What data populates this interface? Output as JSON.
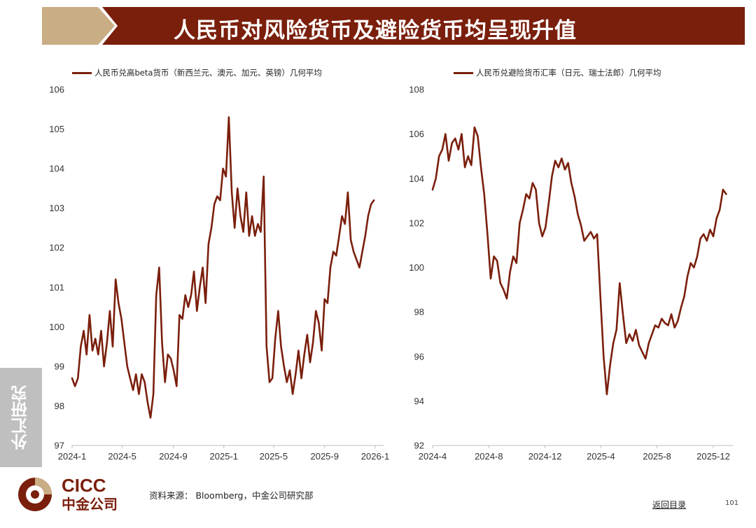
{
  "title": "人民币对风险货币及避险货币均呈现升值",
  "side_tab": "外汇研究",
  "source": "资料来源： Bloomberg，中金公司研究部",
  "back_link": "返回目录",
  "page_number": "101",
  "logo": {
    "en": "CICC",
    "cn": "中金公司"
  },
  "colors": {
    "brand": "#7a1f0c",
    "gold": "#c9ad85",
    "line": "#7a1f0c",
    "tab": "#bfbfbf"
  },
  "chart_data": [
    {
      "type": "line",
      "legend": "人民币兑高beta货币（新西兰元、澳元、加元、英镑）几何平均",
      "ylim": [
        97,
        106
      ],
      "yticks": [
        "97",
        "98",
        "99",
        "100",
        "101",
        "102",
        "103",
        "104",
        "105",
        "106"
      ],
      "xticks": [
        "2024-1",
        "2024-5",
        "2024-9",
        "2025-1",
        "2025-5",
        "2025-9",
        "2026-1"
      ],
      "xtick_dates": [
        "2024-01-01",
        "2024-05-01",
        "2024-09-01",
        "2025-01-01",
        "2025-05-01",
        "2025-09-01",
        "2026-01-01"
      ],
      "series": [
        {
          "points": [
            [
              "2024-01-01",
              98.7
            ],
            [
              "2024-01-08",
              98.5
            ],
            [
              "2024-01-15",
              98.7
            ],
            [
              "2024-01-22",
              99.5
            ],
            [
              "2024-01-29",
              99.9
            ],
            [
              "2024-02-05",
              99.3
            ],
            [
              "2024-02-12",
              100.3
            ],
            [
              "2024-02-19",
              99.4
            ],
            [
              "2024-02-26",
              99.7
            ],
            [
              "2024-03-04",
              99.3
            ],
            [
              "2024-03-11",
              99.9
            ],
            [
              "2024-03-18",
              99.0
            ],
            [
              "2024-03-25",
              99.6
            ],
            [
              "2024-04-01",
              100.4
            ],
            [
              "2024-04-08",
              99.5
            ],
            [
              "2024-04-15",
              101.2
            ],
            [
              "2024-04-22",
              100.6
            ],
            [
              "2024-04-29",
              100.2
            ],
            [
              "2024-05-06",
              99.6
            ],
            [
              "2024-05-13",
              99.0
            ],
            [
              "2024-05-20",
              98.7
            ],
            [
              "2024-05-27",
              98.4
            ],
            [
              "2024-06-03",
              98.8
            ],
            [
              "2024-06-10",
              98.3
            ],
            [
              "2024-06-17",
              98.8
            ],
            [
              "2024-06-24",
              98.6
            ],
            [
              "2024-07-01",
              98.1
            ],
            [
              "2024-07-08",
              97.7
            ],
            [
              "2024-07-15",
              98.3
            ],
            [
              "2024-07-22",
              100.8
            ],
            [
              "2024-07-29",
              101.5
            ],
            [
              "2024-08-05",
              99.6
            ],
            [
              "2024-08-12",
              98.6
            ],
            [
              "2024-08-19",
              99.3
            ],
            [
              "2024-08-26",
              99.2
            ],
            [
              "2024-09-02",
              98.9
            ],
            [
              "2024-09-09",
              98.5
            ],
            [
              "2024-09-16",
              100.3
            ],
            [
              "2024-09-23",
              100.2
            ],
            [
              "2024-09-30",
              100.8
            ],
            [
              "2024-10-07",
              100.5
            ],
            [
              "2024-10-14",
              100.8
            ],
            [
              "2024-10-21",
              101.4
            ],
            [
              "2024-10-28",
              100.4
            ],
            [
              "2024-11-04",
              101.0
            ],
            [
              "2024-11-11",
              101.5
            ],
            [
              "2024-11-18",
              100.6
            ],
            [
              "2024-11-25",
              102.1
            ],
            [
              "2024-12-02",
              102.5
            ],
            [
              "2024-12-09",
              103.1
            ],
            [
              "2024-12-16",
              103.3
            ],
            [
              "2024-12-23",
              103.2
            ],
            [
              "2024-12-30",
              104.0
            ],
            [
              "2025-01-06",
              103.8
            ],
            [
              "2025-01-13",
              105.3
            ],
            [
              "2025-01-20",
              103.4
            ],
            [
              "2025-01-27",
              102.5
            ],
            [
              "2025-02-03",
              103.5
            ],
            [
              "2025-02-10",
              102.8
            ],
            [
              "2025-02-17",
              102.4
            ],
            [
              "2025-02-24",
              103.4
            ],
            [
              "2025-03-03",
              102.3
            ],
            [
              "2025-03-10",
              102.8
            ],
            [
              "2025-03-17",
              102.3
            ],
            [
              "2025-03-24",
              102.6
            ],
            [
              "2025-03-31",
              102.4
            ],
            [
              "2025-04-07",
              103.8
            ],
            [
              "2025-04-14",
              99.5
            ],
            [
              "2025-04-21",
              98.6
            ],
            [
              "2025-04-28",
              98.7
            ],
            [
              "2025-05-05",
              99.7
            ],
            [
              "2025-05-12",
              100.4
            ],
            [
              "2025-05-19",
              99.5
            ],
            [
              "2025-05-26",
              99.0
            ],
            [
              "2025-06-02",
              98.6
            ],
            [
              "2025-06-09",
              98.9
            ],
            [
              "2025-06-16",
              98.3
            ],
            [
              "2025-06-23",
              98.8
            ],
            [
              "2025-06-30",
              99.4
            ],
            [
              "2025-07-07",
              98.7
            ],
            [
              "2025-07-14",
              99.3
            ],
            [
              "2025-07-21",
              99.8
            ],
            [
              "2025-07-28",
              99.1
            ],
            [
              "2025-08-04",
              99.6
            ],
            [
              "2025-08-11",
              100.4
            ],
            [
              "2025-08-18",
              100.1
            ],
            [
              "2025-08-25",
              99.4
            ],
            [
              "2025-09-01",
              100.7
            ],
            [
              "2025-09-08",
              100.6
            ],
            [
              "2025-09-15",
              101.5
            ],
            [
              "2025-09-22",
              101.9
            ],
            [
              "2025-09-29",
              101.8
            ],
            [
              "2025-10-06",
              102.3
            ],
            [
              "2025-10-13",
              102.8
            ],
            [
              "2025-10-20",
              102.6
            ],
            [
              "2025-10-27",
              103.4
            ],
            [
              "2025-11-03",
              102.2
            ],
            [
              "2025-11-10",
              101.9
            ],
            [
              "2025-11-17",
              101.7
            ],
            [
              "2025-11-24",
              101.5
            ],
            [
              "2025-12-01",
              101.9
            ],
            [
              "2025-12-08",
              102.3
            ],
            [
              "2025-12-15",
              102.8
            ],
            [
              "2025-12-22",
              103.1
            ],
            [
              "2025-12-29",
              103.2
            ]
          ]
        }
      ]
    },
    {
      "type": "line",
      "legend": "人民币兑避险货币汇率（日元、瑞士法郎）几何平均",
      "ylim": [
        92,
        108
      ],
      "yticks": [
        "92",
        "94",
        "96",
        "98",
        "100",
        "102",
        "104",
        "106",
        "108"
      ],
      "xticks": [
        "2024-4",
        "2024-8",
        "2024-12",
        "2025-4",
        "2025-8",
        "2025-12"
      ],
      "xtick_dates": [
        "2024-04-01",
        "2024-08-01",
        "2024-12-01",
        "2025-04-01",
        "2025-08-01",
        "2025-12-01"
      ],
      "series": [
        {
          "points": [
            [
              "2024-04-01",
              103.5
            ],
            [
              "2024-04-08",
              104.0
            ],
            [
              "2024-04-15",
              105.0
            ],
            [
              "2024-04-22",
              105.3
            ],
            [
              "2024-04-29",
              106.0
            ],
            [
              "2024-05-06",
              104.8
            ],
            [
              "2024-05-13",
              105.6
            ],
            [
              "2024-05-20",
              105.8
            ],
            [
              "2024-05-27",
              105.3
            ],
            [
              "2024-06-03",
              106.0
            ],
            [
              "2024-06-10",
              104.5
            ],
            [
              "2024-06-17",
              105.0
            ],
            [
              "2024-06-24",
              104.6
            ],
            [
              "2024-07-01",
              106.3
            ],
            [
              "2024-07-08",
              105.9
            ],
            [
              "2024-07-15",
              104.5
            ],
            [
              "2024-07-22",
              103.3
            ],
            [
              "2024-07-29",
              101.5
            ],
            [
              "2024-08-05",
              99.5
            ],
            [
              "2024-08-12",
              100.5
            ],
            [
              "2024-08-19",
              100.3
            ],
            [
              "2024-08-26",
              99.3
            ],
            [
              "2024-09-02",
              99.0
            ],
            [
              "2024-09-09",
              98.6
            ],
            [
              "2024-09-16",
              99.8
            ],
            [
              "2024-09-23",
              100.5
            ],
            [
              "2024-09-30",
              100.2
            ],
            [
              "2024-10-07",
              102.0
            ],
            [
              "2024-10-14",
              102.6
            ],
            [
              "2024-10-21",
              103.3
            ],
            [
              "2024-10-28",
              103.1
            ],
            [
              "2024-11-04",
              103.8
            ],
            [
              "2024-11-11",
              103.5
            ],
            [
              "2024-11-18",
              102.0
            ],
            [
              "2024-11-25",
              101.4
            ],
            [
              "2024-12-02",
              101.8
            ],
            [
              "2024-12-09",
              102.9
            ],
            [
              "2024-12-16",
              104.1
            ],
            [
              "2024-12-23",
              104.8
            ],
            [
              "2024-12-30",
              104.5
            ],
            [
              "2025-01-06",
              104.9
            ],
            [
              "2025-01-13",
              104.4
            ],
            [
              "2025-01-20",
              104.7
            ],
            [
              "2025-01-27",
              103.8
            ],
            [
              "2025-02-03",
              103.2
            ],
            [
              "2025-02-10",
              102.4
            ],
            [
              "2025-02-17",
              101.9
            ],
            [
              "2025-02-24",
              101.2
            ],
            [
              "2025-03-03",
              101.4
            ],
            [
              "2025-03-10",
              101.6
            ],
            [
              "2025-03-17",
              101.3
            ],
            [
              "2025-03-24",
              101.5
            ],
            [
              "2025-03-31",
              98.7
            ],
            [
              "2025-04-07",
              96.0
            ],
            [
              "2025-04-14",
              94.3
            ],
            [
              "2025-04-21",
              95.6
            ],
            [
              "2025-04-28",
              96.6
            ],
            [
              "2025-05-05",
              97.2
            ],
            [
              "2025-05-12",
              99.3
            ],
            [
              "2025-05-19",
              97.9
            ],
            [
              "2025-05-26",
              96.6
            ],
            [
              "2025-06-02",
              97.0
            ],
            [
              "2025-06-09",
              96.7
            ],
            [
              "2025-06-16",
              97.2
            ],
            [
              "2025-06-23",
              96.5
            ],
            [
              "2025-06-30",
              96.2
            ],
            [
              "2025-07-07",
              95.9
            ],
            [
              "2025-07-14",
              96.6
            ],
            [
              "2025-07-21",
              97.0
            ],
            [
              "2025-07-28",
              97.4
            ],
            [
              "2025-08-04",
              97.3
            ],
            [
              "2025-08-11",
              97.7
            ],
            [
              "2025-08-18",
              97.5
            ],
            [
              "2025-08-25",
              97.4
            ],
            [
              "2025-09-01",
              97.9
            ],
            [
              "2025-09-08",
              97.3
            ],
            [
              "2025-09-15",
              97.6
            ],
            [
              "2025-09-22",
              98.2
            ],
            [
              "2025-09-29",
              98.7
            ],
            [
              "2025-10-06",
              99.6
            ],
            [
              "2025-10-13",
              100.2
            ],
            [
              "2025-10-20",
              100.0
            ],
            [
              "2025-10-27",
              100.5
            ],
            [
              "2025-11-03",
              101.3
            ],
            [
              "2025-11-10",
              101.5
            ],
            [
              "2025-11-17",
              101.2
            ],
            [
              "2025-11-24",
              101.7
            ],
            [
              "2025-12-01",
              101.4
            ],
            [
              "2025-12-08",
              102.2
            ],
            [
              "2025-12-15",
              102.6
            ],
            [
              "2025-12-22",
              103.5
            ],
            [
              "2025-12-29",
              103.3
            ]
          ]
        }
      ]
    }
  ]
}
